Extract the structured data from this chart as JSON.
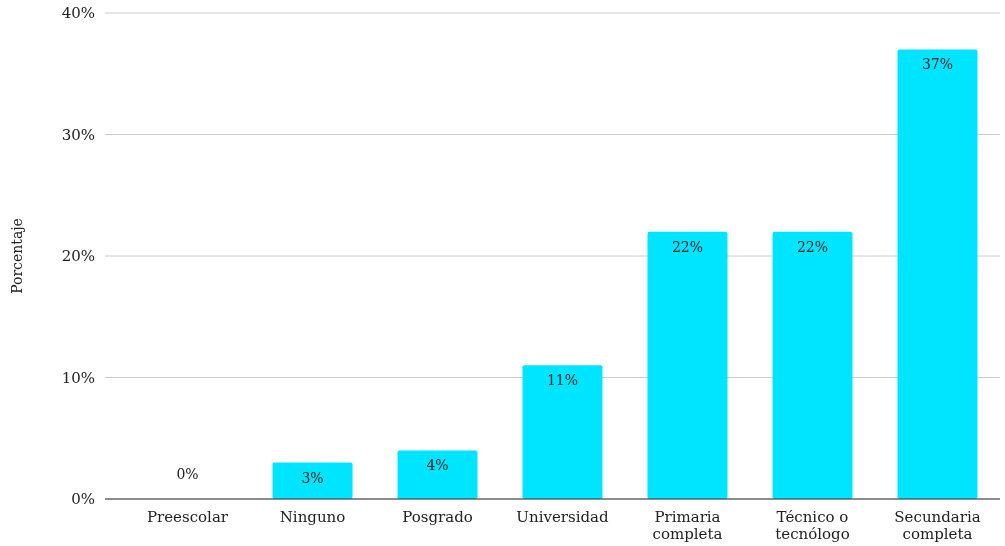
{
  "chart_data": {
    "type": "bar",
    "ylabel": "Porcentaje",
    "categories": [
      "Preescolar",
      "Ninguno",
      "Posgrado",
      "Universidad",
      "Primaria completa",
      "Técnico o tecnólogo",
      "Secundaria completa"
    ],
    "values": [
      0,
      3,
      4,
      11,
      22,
      22,
      37
    ],
    "value_labels": [
      "0%",
      "3%",
      "4%",
      "11%",
      "22%",
      "22%",
      "37%"
    ],
    "color": "#00e5ff",
    "ylim": [
      0,
      40
    ],
    "yticks": [
      {
        "value": 0,
        "label": "0%"
      },
      {
        "value": 10,
        "label": "10%"
      },
      {
        "value": 20,
        "label": "20%"
      },
      {
        "value": 30,
        "label": "30%"
      },
      {
        "value": 40,
        "label": "40%"
      }
    ],
    "grid": "y"
  }
}
